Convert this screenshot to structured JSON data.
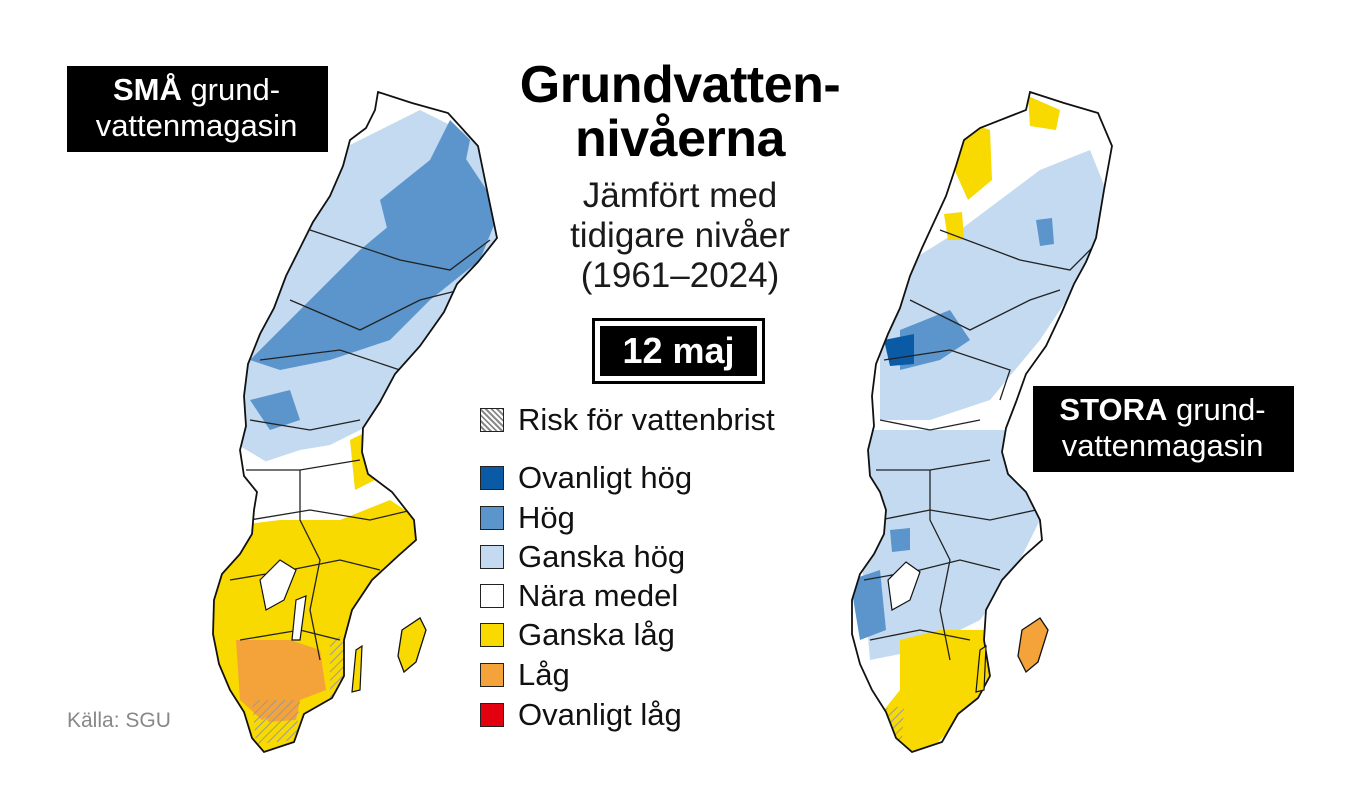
{
  "title": "Grundvatten-\nnivåerna",
  "title_line1": "Grundvatten-",
  "title_line2": "nivåerna",
  "subtitle_line1": "Jämfört med",
  "subtitle_line2": "tidigare nivåer",
  "subtitle_line3": "(1961–2024)",
  "date": "12 maj",
  "left_map": {
    "label_bold": "SMÅ",
    "label_rest": " grund-",
    "label_line2": "vattenmagasin"
  },
  "right_map": {
    "label_bold": "STORA",
    "label_rest": " grund-",
    "label_line2": "vattenmagasin"
  },
  "legend": {
    "hatch_label": "Risk för vattenbrist",
    "items": [
      {
        "label": "Ovanligt hög",
        "color": "#0b5aa5"
      },
      {
        "label": "Hög",
        "color": "#5b95cb"
      },
      {
        "label": "Ganska hög",
        "color": "#c3daf1"
      },
      {
        "label": "Nära medel",
        "color": "#ffffff"
      },
      {
        "label": "Ganska låg",
        "color": "#f8d900"
      },
      {
        "label": "Låg",
        "color": "#f4a23a"
      },
      {
        "label": "Ovanligt låg",
        "color": "#e3000f"
      }
    ]
  },
  "source": "Källa: SGU"
}
